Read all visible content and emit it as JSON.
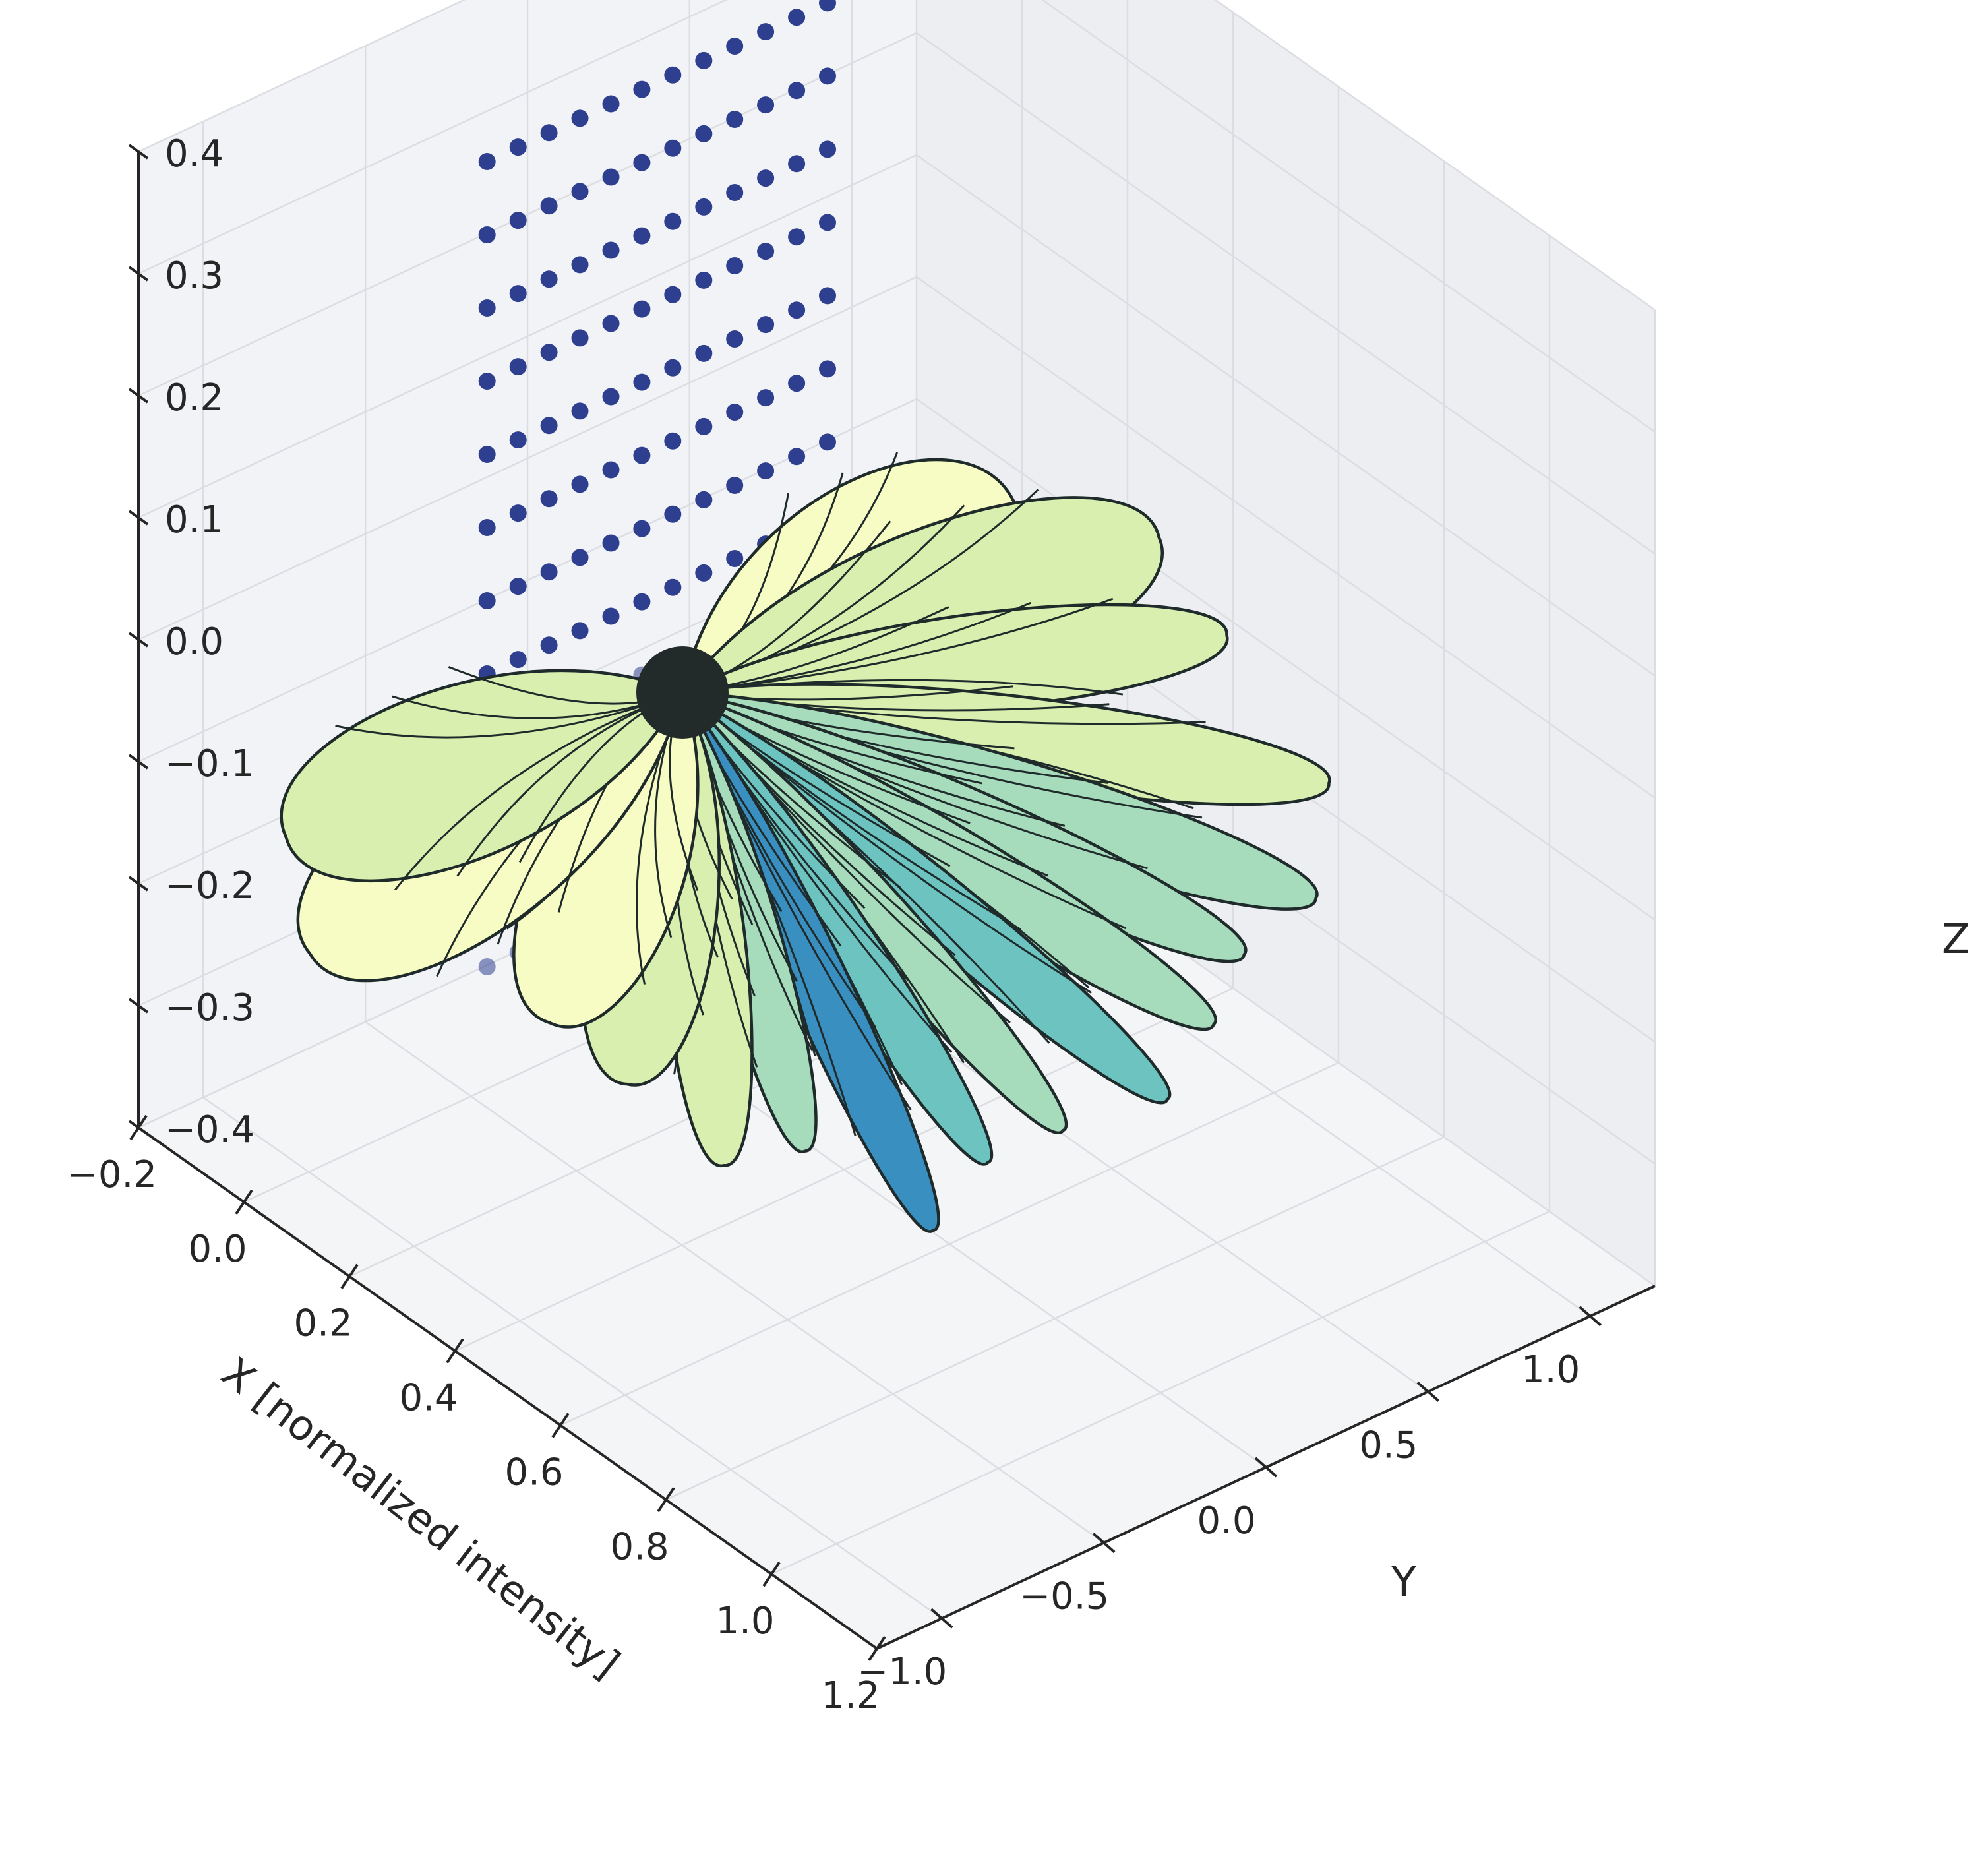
{
  "chart_data": {
    "type": "3d-surface-scatter",
    "title": "",
    "xlabel": "X [normalized intensity]",
    "ylabel": "Y",
    "zlabel": "Z",
    "x_ticks": [
      "−0.2",
      "0.0",
      "0.2",
      "0.4",
      "0.6",
      "0.8",
      "1.0",
      "1.2"
    ],
    "y_ticks": [
      "−1.0",
      "−0.5",
      "0.0",
      "0.5",
      "1.0"
    ],
    "z_ticks": [
      "−0.4",
      "−0.3",
      "−0.2",
      "−0.1",
      "0.0",
      "0.1",
      "0.2",
      "0.3",
      "0.4"
    ],
    "xlim": [
      -0.2,
      1.2
    ],
    "ylim": [
      -1.2,
      1.2
    ],
    "zlim": [
      -0.4,
      0.4
    ],
    "grid": true,
    "scatter_grid": {
      "x_value": 0.0,
      "y_range": [
        -0.45,
        0.6
      ],
      "z_range": [
        -0.3,
        0.36
      ],
      "color": "#2f3f8f"
    },
    "lobe_colormap": [
      "#f7fcc4",
      "#d9efb0",
      "#a6dbbb",
      "#6cc3c0",
      "#3a8fc1"
    ],
    "lobe_outline_color": "#1f2a2a",
    "pane_color": "#f2f3f6",
    "grid_color": "#dcdde2"
  }
}
